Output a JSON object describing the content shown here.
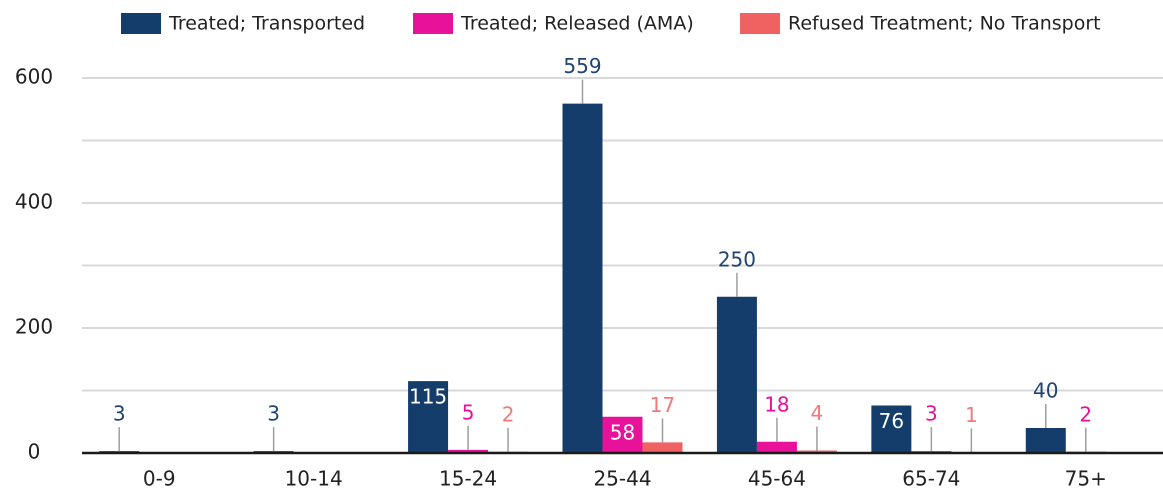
{
  "chart_data": {
    "type": "bar",
    "categories": [
      "0-9",
      "10-14",
      "15-24",
      "25-44",
      "45-64",
      "65-74",
      "75+"
    ],
    "series": [
      {
        "name": "Treated; Transported",
        "color": "#143d6b",
        "label_color": "#1f4470",
        "values": [
          3,
          3,
          115,
          559,
          250,
          76,
          40
        ],
        "label_inside": [
          false,
          false,
          true,
          false,
          false,
          true,
          false
        ]
      },
      {
        "name": "Treated; Released (AMA)",
        "color": "#e8119a",
        "label_color": "#e8119a",
        "values": [
          null,
          null,
          5,
          58,
          18,
          3,
          2
        ],
        "label_inside": [
          false,
          false,
          false,
          true,
          false,
          false,
          false
        ]
      },
      {
        "name": "Refused Treatment; No Transport",
        "color": "#f06262",
        "label_color": "#f07a7a",
        "values": [
          null,
          null,
          2,
          17,
          4,
          1,
          null
        ],
        "label_inside": [
          false,
          false,
          false,
          false,
          false,
          false,
          false
        ]
      }
    ],
    "ylim": [
      0,
      600
    ],
    "yticks": [
      0,
      200,
      400,
      600
    ],
    "y_minor_ticks": [
      100,
      300,
      500
    ],
    "grid": true,
    "legend": "top"
  }
}
